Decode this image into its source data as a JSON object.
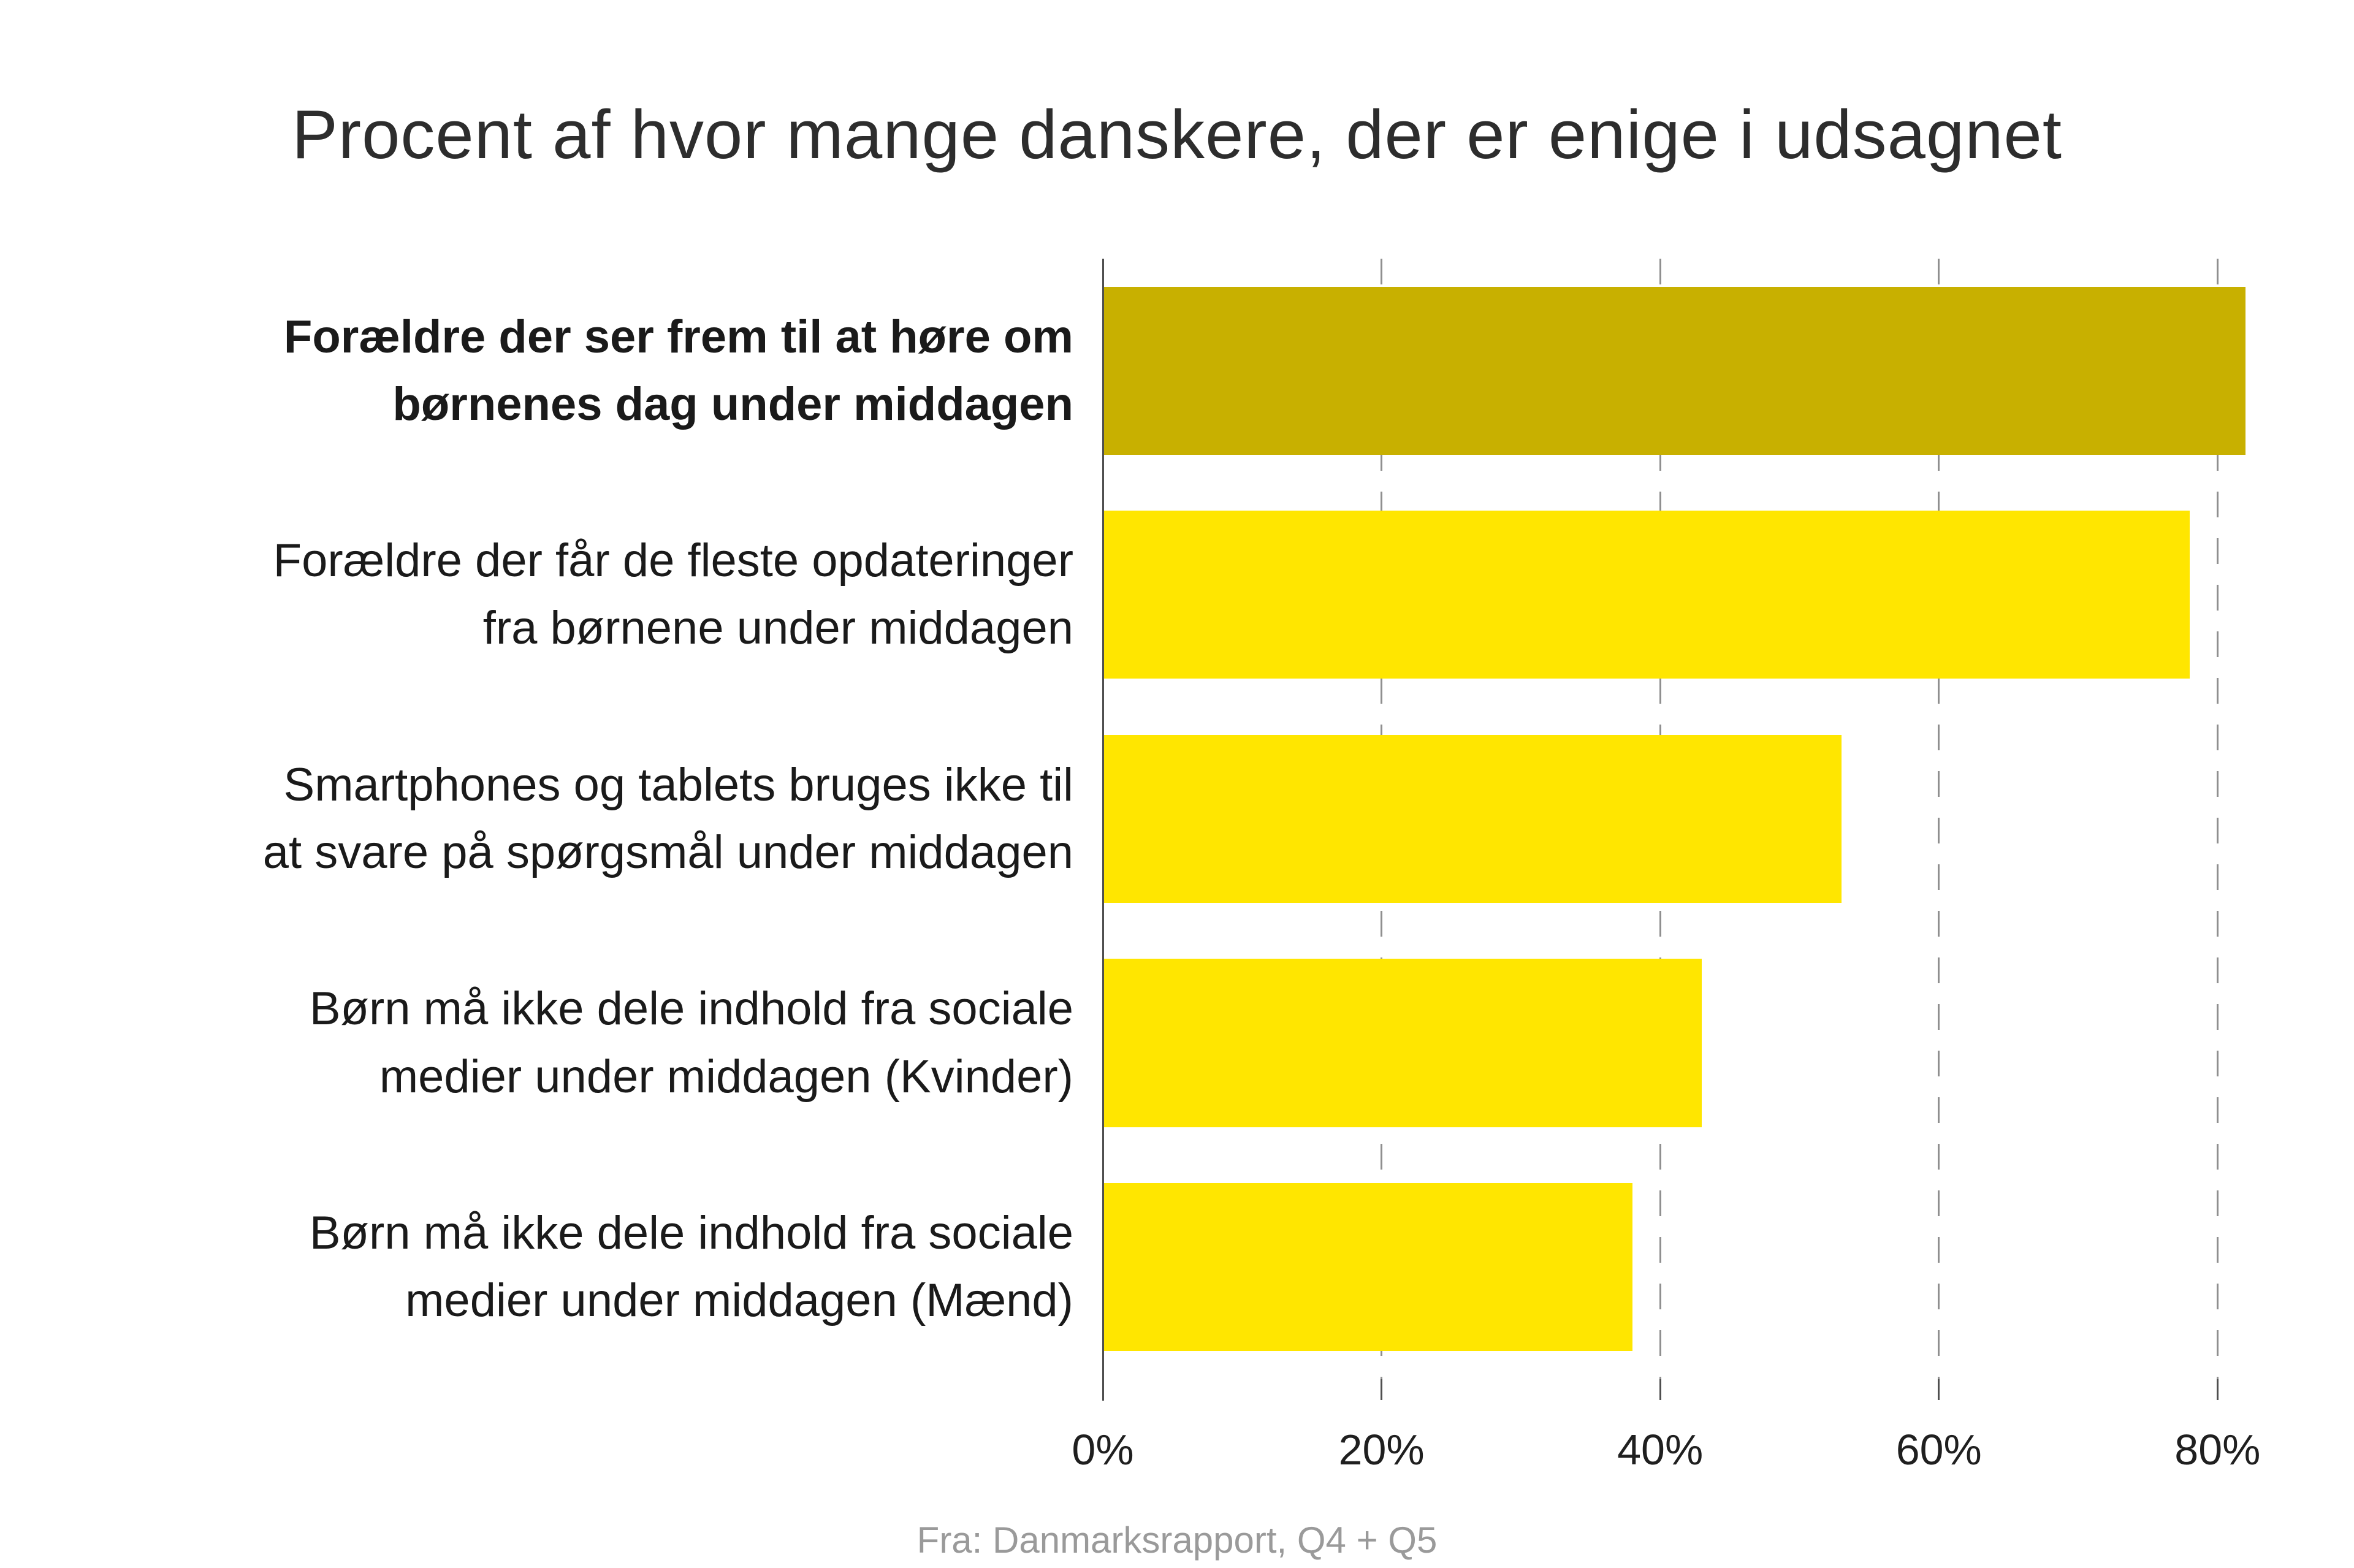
{
  "title": "Procent af hvor mange danskere, der er enige i udsagnet",
  "source_note": "Fra: Danmarksrapport, Q4 + Q5",
  "colors": {
    "highlight_bar": "#c8b000",
    "bar": "#ffe600",
    "gridline": "#8f8f8f",
    "axis": "#4f4f4f",
    "title_text": "#2d2d2d",
    "label_text": "#1a1a1a",
    "source_text": "#9a9a9a"
  },
  "chart_data": {
    "type": "bar",
    "orientation": "horizontal",
    "title": "Procent af hvor mange danskere, der er enige i udsagnet",
    "categories": [
      "Forældre der ser frem til at høre om\nbørnenes dag under middagen",
      "Forældre der får de fleste opdateringer\nfra børnene under middagen",
      "Smartphones og tablets bruges ikke til\nat svare på spørgsmål under middagen",
      "Børn må ikke dele indhold fra sociale\nmedier under middagen (Kvinder)",
      "Børn må ikke dele indhold fra sociale\nmedier under middagen (Mænd)"
    ],
    "values": [
      82,
      78,
      53,
      43,
      38
    ],
    "unit": "%",
    "xlim": [
      0,
      85
    ],
    "x_tick_values": [
      0,
      20,
      40,
      60,
      80
    ],
    "x_ticks": [
      "0%",
      "20%",
      "40%",
      "60%",
      "80%"
    ],
    "grid": "dashed-vertical",
    "legend": "none",
    "highlight_index": 0,
    "ylabel": "",
    "xlabel": "",
    "source": "Fra: Danmarksrapport, Q4 + Q5"
  }
}
